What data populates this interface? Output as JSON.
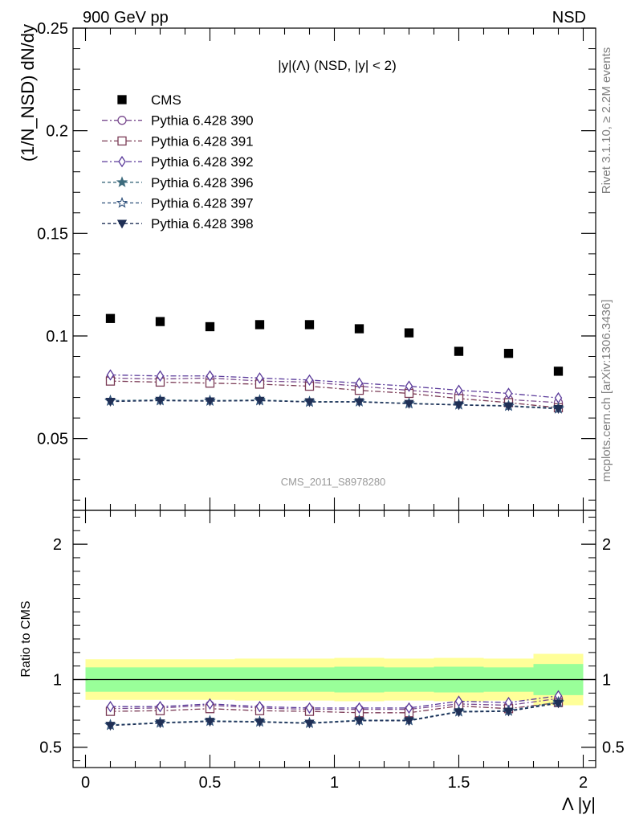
{
  "header": {
    "left": "900 GeV pp",
    "right": "NSD"
  },
  "side_labels": {
    "rivet": "Rivet 3.1.10, ≥ 2.2M events",
    "mcplots": "mcplots.cern.ch [arXiv:1306.3436]"
  },
  "watermark": "CMS_2011_S8978280",
  "chart_data": [
    {
      "type": "line",
      "title": "|y|(Λ) (NSD, |y| < 2)",
      "ylabel": "(1/N_NSD) dN/dy",
      "xlim": [
        -0.05,
        2.05
      ],
      "ylim": [
        0.015,
        0.25
      ],
      "yticks": [
        "0.05",
        "0.1",
        "0.15",
        "0.2",
        "0.25"
      ],
      "x": [
        0.1,
        0.3,
        0.5,
        0.7,
        0.9,
        1.1,
        1.3,
        1.5,
        1.7,
        1.9
      ],
      "legend_position": "top-left",
      "series": [
        {
          "name": "CMS",
          "style": "data",
          "marker": "square-filled",
          "color": "#000000",
          "values": [
            0.1085,
            0.107,
            0.1045,
            0.1055,
            0.1055,
            0.1035,
            0.1015,
            0.0925,
            0.0915,
            0.0828
          ]
        },
        {
          "name": "Pythia 6.428 390",
          "style": "dashdot",
          "marker": "circle-open",
          "color": "#7a4b8f",
          "values": [
            0.0795,
            0.079,
            0.0795,
            0.078,
            0.0775,
            0.0755,
            0.0735,
            0.0715,
            0.069,
            0.0675
          ]
        },
        {
          "name": "Pythia 6.428 391",
          "style": "dashdot",
          "marker": "square-open",
          "color": "#7a3a55",
          "values": [
            0.078,
            0.0775,
            0.077,
            0.0765,
            0.0755,
            0.0735,
            0.072,
            0.0695,
            0.0675,
            0.065
          ]
        },
        {
          "name": "Pythia 6.428 392",
          "style": "dashdot",
          "marker": "diamond-open",
          "color": "#5a3a9a",
          "values": [
            0.081,
            0.0805,
            0.0805,
            0.0795,
            0.0785,
            0.077,
            0.0755,
            0.0735,
            0.072,
            0.0698
          ]
        },
        {
          "name": "Pythia 6.428 396",
          "style": "dashed",
          "marker": "star-filled",
          "color": "#3d6b7d",
          "values": [
            0.0685,
            0.0688,
            0.0685,
            0.0688,
            0.068,
            0.068,
            0.0672,
            0.0665,
            0.066,
            0.0648
          ]
        },
        {
          "name": "Pythia 6.428 397",
          "style": "dashed",
          "marker": "star-open",
          "color": "#2d4f7a",
          "values": [
            0.0683,
            0.0685,
            0.0683,
            0.0685,
            0.0678,
            0.068,
            0.067,
            0.0665,
            0.0658,
            0.0645
          ]
        },
        {
          "name": "Pythia 6.428 398",
          "style": "dashed",
          "marker": "triangle-down-filled",
          "color": "#1f2f55",
          "values": [
            0.068,
            0.0685,
            0.0682,
            0.0685,
            0.0678,
            0.0678,
            0.067,
            0.0663,
            0.0658,
            0.0645
          ]
        }
      ]
    },
    {
      "type": "line",
      "xlabel": "Λ |y|",
      "ylabel": "Ratio to CMS",
      "xlim": [
        -0.05,
        2.05
      ],
      "ylim": [
        0.35,
        2.25
      ],
      "xticks": [
        "0",
        "0.5",
        "1",
        "1.5",
        "2"
      ],
      "yticks": [
        "0.5",
        "1",
        "2"
      ],
      "x": [
        0.1,
        0.3,
        0.5,
        0.7,
        0.9,
        1.1,
        1.3,
        1.5,
        1.7,
        1.9
      ],
      "bins": [
        [
          0.0,
          0.2
        ],
        [
          0.2,
          0.4
        ],
        [
          0.4,
          0.6
        ],
        [
          0.6,
          0.8
        ],
        [
          0.8,
          1.0
        ],
        [
          1.0,
          1.2
        ],
        [
          1.2,
          1.4
        ],
        [
          1.4,
          1.6
        ],
        [
          1.6,
          1.8
        ],
        [
          1.8,
          2.0
        ]
      ],
      "band_stat": [
        0.09,
        0.09,
        0.09,
        0.09,
        0.09,
        0.095,
        0.09,
        0.095,
        0.09,
        0.115
      ],
      "band_total": [
        0.15,
        0.15,
        0.15,
        0.155,
        0.155,
        0.16,
        0.155,
        0.16,
        0.155,
        0.19
      ],
      "band_colors": {
        "stat": "#99ff99",
        "total": "#ffff99"
      },
      "series": [
        {
          "name": "Pythia 6.428 390",
          "style": "dashdot",
          "marker": "circle-open",
          "color": "#7a4b8f",
          "values": [
            0.785,
            0.79,
            0.81,
            0.79,
            0.78,
            0.78,
            0.78,
            0.82,
            0.81,
            0.86
          ]
        },
        {
          "name": "Pythia 6.428 391",
          "style": "dashdot",
          "marker": "square-open",
          "color": "#7a3a55",
          "values": [
            0.765,
            0.77,
            0.785,
            0.77,
            0.765,
            0.755,
            0.755,
            0.805,
            0.785,
            0.83
          ]
        },
        {
          "name": "Pythia 6.428 392",
          "style": "dashdot",
          "marker": "diamond-open",
          "color": "#5a3a9a",
          "values": [
            0.8,
            0.8,
            0.82,
            0.8,
            0.79,
            0.79,
            0.79,
            0.84,
            0.83,
            0.88
          ]
        },
        {
          "name": "Pythia 6.428 396",
          "style": "dashed",
          "marker": "star-filled",
          "color": "#3d6b7d",
          "values": [
            0.665,
            0.682,
            0.695,
            0.69,
            0.68,
            0.7,
            0.7,
            0.765,
            0.77,
            0.835
          ]
        },
        {
          "name": "Pythia 6.428 397",
          "style": "dashed",
          "marker": "star-open",
          "color": "#2d4f7a",
          "values": [
            0.663,
            0.68,
            0.693,
            0.688,
            0.678,
            0.698,
            0.698,
            0.763,
            0.768,
            0.83
          ]
        },
        {
          "name": "Pythia 6.428 398",
          "style": "dashed",
          "marker": "triangle-down-filled",
          "color": "#1f2f55",
          "values": [
            0.66,
            0.678,
            0.69,
            0.686,
            0.676,
            0.695,
            0.695,
            0.76,
            0.765,
            0.825
          ]
        }
      ]
    }
  ]
}
